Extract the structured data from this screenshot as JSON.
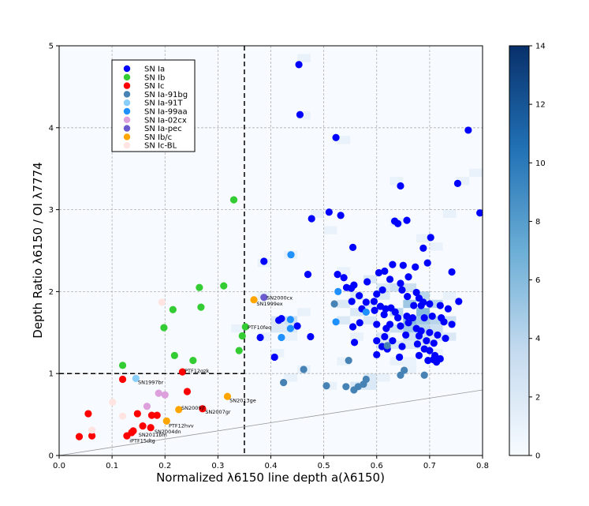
{
  "chart_data": {
    "type": "scatter",
    "title": "",
    "xlabel": "Normalized λ6150 line depth a(λ6150)",
    "ylabel": "Depth Ratio λ6150 / OI λ7774",
    "xlim": [
      0.0,
      0.8
    ],
    "ylim": [
      0,
      5
    ],
    "xticks": [
      "0.0",
      "0.1",
      "0.2",
      "0.3",
      "0.4",
      "0.5",
      "0.6",
      "0.7",
      "0.8"
    ],
    "yticks": [
      "0",
      "1",
      "2",
      "3",
      "4",
      "5"
    ],
    "grid": true,
    "colorbar": {
      "min": 0,
      "max": 14,
      "ticks": [
        "0",
        "2",
        "4",
        "6",
        "8",
        "10",
        "12",
        "14"
      ],
      "low_color": "#f7fbff",
      "high_color": "#08306b"
    },
    "legend_position": "upper-left",
    "legend": [
      {
        "name": "SN Ia",
        "color": "#0000ff"
      },
      {
        "name": "SN Ib",
        "color": "#33cc33"
      },
      {
        "name": "SN Ic",
        "color": "#ff0000"
      },
      {
        "name": "SN Ia-91bg",
        "color": "#4682b4"
      },
      {
        "name": "SN Ia-91T",
        "color": "#87cefa"
      },
      {
        "name": "SN Ia-99aa",
        "color": "#1e90ff"
      },
      {
        "name": "SN Ia-02cx",
        "color": "#dda0dd"
      },
      {
        "name": "SN Ia-pec",
        "color": "#6a5acd"
      },
      {
        "name": "SN Ib/c",
        "color": "#ffa500"
      },
      {
        "name": "SN Ic-BL",
        "color": "#ffe4e1"
      }
    ],
    "threshold_lines": {
      "x": 0.35,
      "y": 1.0
    },
    "diagonal_line": {
      "x": [
        0.0,
        0.8
      ],
      "y": [
        0.0,
        0.8
      ]
    },
    "heatmap": {
      "xbin": 0.025,
      "ybin": 0.1,
      "cells": [
        [
          0.45,
          4.8,
          1
        ],
        [
          0.45,
          4.1,
          1
        ],
        [
          0.525,
          3.8,
          1
        ],
        [
          0.75,
          3.3,
          1
        ],
        [
          0.625,
          3.3,
          1
        ],
        [
          0.775,
          3.4,
          1
        ],
        [
          0.475,
          2.9,
          1
        ],
        [
          0.625,
          2.8,
          1
        ],
        [
          0.725,
          2.9,
          1
        ],
        [
          0.5,
          2.7,
          1
        ],
        [
          0.675,
          2.6,
          1
        ],
        [
          0.7,
          2.5,
          1
        ],
        [
          0.525,
          2.2,
          1
        ],
        [
          0.575,
          2.1,
          2
        ],
        [
          0.6,
          2.0,
          2
        ],
        [
          0.625,
          2.0,
          3
        ],
        [
          0.65,
          2.0,
          3
        ],
        [
          0.675,
          1.9,
          4
        ],
        [
          0.7,
          1.8,
          4
        ],
        [
          0.65,
          1.8,
          5
        ],
        [
          0.675,
          1.7,
          6
        ],
        [
          0.625,
          1.7,
          4
        ],
        [
          0.65,
          1.6,
          6
        ],
        [
          0.675,
          1.6,
          5
        ],
        [
          0.7,
          1.6,
          4
        ],
        [
          0.725,
          1.6,
          3
        ],
        [
          0.65,
          1.5,
          5
        ],
        [
          0.675,
          1.5,
          4
        ],
        [
          0.7,
          1.5,
          3
        ],
        [
          0.625,
          1.5,
          3
        ],
        [
          0.6,
          1.4,
          2
        ],
        [
          0.65,
          1.4,
          3
        ],
        [
          0.675,
          1.4,
          3
        ],
        [
          0.7,
          1.4,
          2
        ],
        [
          0.725,
          1.4,
          2
        ],
        [
          0.6,
          1.3,
          2
        ],
        [
          0.625,
          1.3,
          2
        ],
        [
          0.65,
          1.3,
          2
        ],
        [
          0.675,
          1.3,
          2
        ],
        [
          0.7,
          1.2,
          1
        ],
        [
          0.575,
          1.8,
          2
        ],
        [
          0.55,
          1.9,
          2
        ],
        [
          0.525,
          1.8,
          2
        ],
        [
          0.55,
          1.7,
          2
        ],
        [
          0.525,
          1.6,
          2
        ],
        [
          0.55,
          1.4,
          1
        ],
        [
          0.6,
          1.9,
          2
        ],
        [
          0.725,
          1.9,
          1
        ],
        [
          0.575,
          1.6,
          2
        ],
        [
          0.625,
          1.1,
          1
        ],
        [
          0.65,
          1.1,
          1
        ],
        [
          0.65,
          1.0,
          1
        ],
        [
          0.425,
          1.6,
          3
        ],
        [
          0.4,
          1.6,
          2
        ],
        [
          0.425,
          1.5,
          2
        ],
        [
          0.4,
          1.5,
          2
        ],
        [
          0.375,
          1.4,
          1
        ],
        [
          0.425,
          1.4,
          1
        ],
        [
          0.45,
          1.7,
          1
        ],
        [
          0.4,
          1.2,
          1
        ],
        [
          0.45,
          1.0,
          1
        ],
        [
          0.425,
          0.9,
          1
        ],
        [
          0.525,
          1.1,
          1
        ],
        [
          0.575,
          0.9,
          2
        ],
        [
          0.55,
          0.8,
          2
        ],
        [
          0.575,
          0.8,
          2
        ],
        [
          0.6,
          0.9,
          1
        ],
        [
          0.65,
          1.0,
          1
        ],
        [
          0.5,
          0.8,
          1
        ],
        [
          0.375,
          1.9,
          1
        ],
        [
          0.425,
          2.4,
          1
        ],
        [
          0.375,
          2.3,
          1
        ],
        [
          0.325,
          1.5,
          1
        ]
      ]
    },
    "series": [
      {
        "name": "SN Ia",
        "color": "#0000ff",
        "points": [
          [
            0.453,
            4.77
          ],
          [
            0.455,
            4.16
          ],
          [
            0.523,
            3.88
          ],
          [
            0.773,
            3.97
          ],
          [
            0.753,
            3.32
          ],
          [
            0.795,
            2.96
          ],
          [
            0.645,
            3.29
          ],
          [
            0.64,
            2.83
          ],
          [
            0.657,
            2.87
          ],
          [
            0.634,
            2.86
          ],
          [
            0.51,
            2.97
          ],
          [
            0.532,
            2.93
          ],
          [
            0.477,
            2.89
          ],
          [
            0.702,
            2.66
          ],
          [
            0.688,
            2.53
          ],
          [
            0.555,
            2.54
          ],
          [
            0.387,
            2.37
          ],
          [
            0.47,
            2.21
          ],
          [
            0.526,
            2.21
          ],
          [
            0.538,
            2.17
          ],
          [
            0.604,
            2.23
          ],
          [
            0.615,
            2.25
          ],
          [
            0.63,
            2.33
          ],
          [
            0.65,
            2.32
          ],
          [
            0.673,
            2.3
          ],
          [
            0.696,
            2.35
          ],
          [
            0.742,
            2.24
          ],
          [
            0.582,
            2.12
          ],
          [
            0.625,
            2.15
          ],
          [
            0.645,
            2.1
          ],
          [
            0.66,
            2.18
          ],
          [
            0.543,
            2.05
          ],
          [
            0.552,
            2.04
          ],
          [
            0.557,
            2.08
          ],
          [
            0.567,
            1.95
          ],
          [
            0.6,
            1.97
          ],
          [
            0.611,
            2.02
          ],
          [
            0.648,
            2.02
          ],
          [
            0.658,
            1.94
          ],
          [
            0.675,
            1.99
          ],
          [
            0.68,
            1.92
          ],
          [
            0.688,
            1.87
          ],
          [
            0.7,
            1.85
          ],
          [
            0.72,
            1.83
          ],
          [
            0.735,
            1.79
          ],
          [
            0.755,
            1.88
          ],
          [
            0.553,
            1.88
          ],
          [
            0.58,
            1.87
          ],
          [
            0.595,
            1.88
          ],
          [
            0.607,
            1.82
          ],
          [
            0.617,
            1.79
          ],
          [
            0.627,
            1.8
          ],
          [
            0.635,
            1.75
          ],
          [
            0.67,
            1.83
          ],
          [
            0.684,
            1.83
          ],
          [
            0.705,
            1.7
          ],
          [
            0.722,
            1.68
          ],
          [
            0.572,
            1.79
          ],
          [
            0.596,
            1.77
          ],
          [
            0.614,
            1.72
          ],
          [
            0.64,
            1.68
          ],
          [
            0.657,
            1.7
          ],
          [
            0.668,
            1.68
          ],
          [
            0.69,
            1.68
          ],
          [
            0.727,
            1.63
          ],
          [
            0.742,
            1.6
          ],
          [
            0.555,
            1.57
          ],
          [
            0.568,
            1.62
          ],
          [
            0.6,
            1.6
          ],
          [
            0.618,
            1.55
          ],
          [
            0.625,
            1.6
          ],
          [
            0.645,
            1.58
          ],
          [
            0.66,
            1.62
          ],
          [
            0.675,
            1.55
          ],
          [
            0.684,
            1.52
          ],
          [
            0.7,
            1.5
          ],
          [
            0.715,
            1.47
          ],
          [
            0.73,
            1.43
          ],
          [
            0.615,
            1.45
          ],
          [
            0.63,
            1.4
          ],
          [
            0.655,
            1.47
          ],
          [
            0.68,
            1.46
          ],
          [
            0.694,
            1.4
          ],
          [
            0.708,
            1.37
          ],
          [
            0.558,
            1.38
          ],
          [
            0.6,
            1.4
          ],
          [
            0.61,
            1.33
          ],
          [
            0.62,
            1.3
          ],
          [
            0.648,
            1.33
          ],
          [
            0.677,
            1.36
          ],
          [
            0.69,
            1.3
          ],
          [
            0.7,
            1.28
          ],
          [
            0.71,
            1.22
          ],
          [
            0.72,
            1.18
          ],
          [
            0.6,
            1.23
          ],
          [
            0.643,
            1.2
          ],
          [
            0.68,
            1.22
          ],
          [
            0.697,
            1.16
          ],
          [
            0.707,
            1.17
          ],
          [
            0.713,
            1.14
          ],
          [
            0.38,
            1.44
          ],
          [
            0.407,
            1.2
          ],
          [
            0.415,
            1.65
          ],
          [
            0.42,
            1.67
          ],
          [
            0.45,
            1.58
          ],
          [
            0.475,
            1.45
          ]
        ]
      },
      {
        "name": "SN Ib",
        "color": "#33cc33",
        "points": [
          [
            0.33,
            3.12
          ],
          [
            0.265,
            2.05
          ],
          [
            0.311,
            2.07
          ],
          [
            0.215,
            1.78
          ],
          [
            0.268,
            1.81
          ],
          [
            0.198,
            1.56
          ],
          [
            0.352,
            1.57
          ],
          [
            0.346,
            1.46
          ],
          [
            0.218,
            1.22
          ],
          [
            0.253,
            1.16
          ],
          [
            0.34,
            1.28
          ],
          [
            0.12,
            1.1
          ]
        ]
      },
      {
        "name": "SN Ic",
        "color": "#ff0000",
        "points": [
          [
            0.233,
            1.02
          ],
          [
            0.12,
            0.93
          ],
          [
            0.242,
            0.78
          ],
          [
            0.271,
            0.57
          ],
          [
            0.055,
            0.51
          ],
          [
            0.148,
            0.51
          ],
          [
            0.175,
            0.49
          ],
          [
            0.185,
            0.49
          ],
          [
            0.158,
            0.36
          ],
          [
            0.173,
            0.34
          ],
          [
            0.14,
            0.3
          ],
          [
            0.137,
            0.28
          ],
          [
            0.128,
            0.24
          ],
          [
            0.062,
            0.24
          ],
          [
            0.038,
            0.23
          ]
        ]
      },
      {
        "name": "SN Ia-91bg",
        "color": "#4682b4",
        "points": [
          [
            0.52,
            1.85
          ],
          [
            0.62,
            1.34
          ],
          [
            0.547,
            1.16
          ],
          [
            0.462,
            1.05
          ],
          [
            0.652,
            1.04
          ],
          [
            0.645,
            0.98
          ],
          [
            0.69,
            0.98
          ],
          [
            0.58,
            0.93
          ],
          [
            0.575,
            0.87
          ],
          [
            0.565,
            0.84
          ],
          [
            0.557,
            0.8
          ],
          [
            0.542,
            0.84
          ],
          [
            0.505,
            0.85
          ],
          [
            0.424,
            0.89
          ]
        ]
      },
      {
        "name": "SN Ia-91T",
        "color": "#87cefa",
        "points": [
          [
            0.145,
            0.94
          ]
        ]
      },
      {
        "name": "SN Ia-99aa",
        "color": "#1e90ff",
        "points": [
          [
            0.438,
            2.45
          ],
          [
            0.527,
            2.0
          ],
          [
            0.58,
            1.75
          ],
          [
            0.42,
            1.44
          ],
          [
            0.437,
            1.55
          ],
          [
            0.437,
            1.66
          ],
          [
            0.523,
            1.63
          ]
        ]
      },
      {
        "name": "SN Ia-02cx",
        "color": "#dda0dd",
        "points": [
          [
            0.188,
            0.76
          ],
          [
            0.2,
            0.74
          ],
          [
            0.166,
            0.6
          ]
        ]
      },
      {
        "name": "SN Ia-pec",
        "color": "#6a5acd",
        "points": [
          [
            0.387,
            1.93
          ]
        ]
      },
      {
        "name": "SN Ib/c",
        "color": "#ffa500",
        "points": [
          [
            0.368,
            1.9
          ],
          [
            0.318,
            0.72
          ],
          [
            0.226,
            0.56
          ],
          [
            0.203,
            0.42
          ]
        ]
      },
      {
        "name": "SN Ic-BL",
        "color": "#ffe4e1",
        "points": [
          [
            0.194,
            1.87
          ],
          [
            0.101,
            0.65
          ],
          [
            0.12,
            0.48
          ],
          [
            0.062,
            0.31
          ]
        ]
      }
    ],
    "annotations": [
      {
        "text": "SN2000cx",
        "x": 0.392,
        "y": 1.93
      },
      {
        "text": "SN1999ex",
        "x": 0.373,
        "y": 1.86
      },
      {
        "text": "PTF10feq",
        "x": 0.356,
        "y": 1.57
      },
      {
        "text": "PTF12gzk",
        "x": 0.237,
        "y": 1.04
      },
      {
        "text": "SN1997br",
        "x": 0.149,
        "y": 0.9
      },
      {
        "text": "SN2013ge",
        "x": 0.322,
        "y": 0.68
      },
      {
        "text": "SN2009jf",
        "x": 0.231,
        "y": 0.59
      },
      {
        "text": "SN2007gr",
        "x": 0.276,
        "y": 0.54
      },
      {
        "text": "PTF12hvv",
        "x": 0.207,
        "y": 0.37
      },
      {
        "text": "SN2004dn",
        "x": 0.18,
        "y": 0.3
      },
      {
        "text": "SN2011bm",
        "x": 0.15,
        "y": 0.26
      },
      {
        "text": "iPTF15dtg",
        "x": 0.133,
        "y": 0.19
      }
    ]
  }
}
